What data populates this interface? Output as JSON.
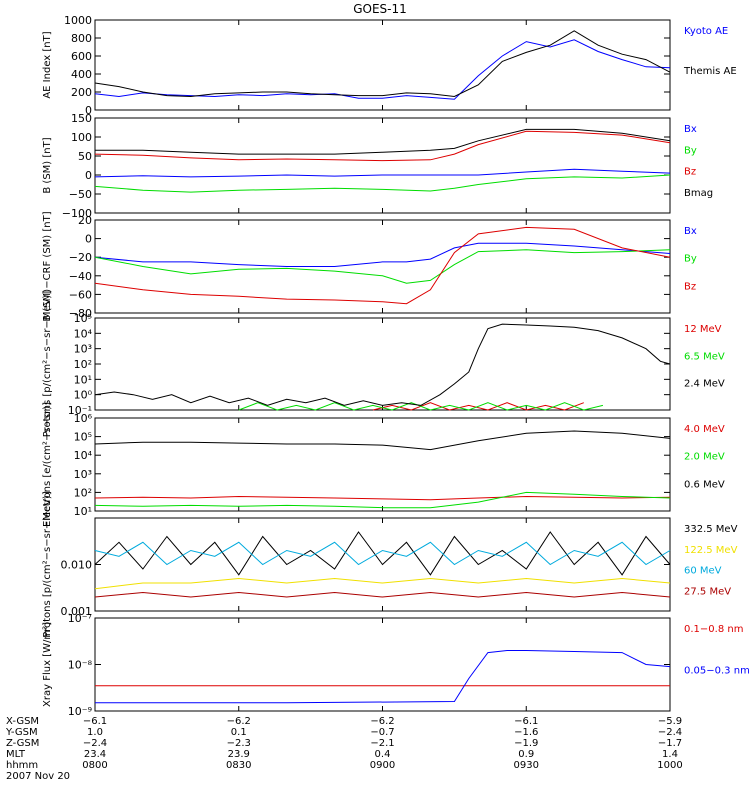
{
  "title": "GOES-11",
  "colors": {
    "black": "#000000",
    "blue": "#0000ff",
    "green": "#00dd00",
    "red": "#dd0000",
    "cyan": "#00aadd",
    "yellow": "#f0e000",
    "darkred": "#aa0000"
  },
  "chart_data": [
    {
      "type": "line",
      "ylabel": "AE Index [nT]",
      "yscale": "linear",
      "ylim": [
        0,
        1000
      ],
      "yticks": [
        {
          "v": 0,
          "t": "0"
        },
        {
          "v": 200,
          "t": "200"
        },
        {
          "v": 400,
          "t": "400"
        },
        {
          "v": 600,
          "t": "600"
        },
        {
          "v": 800,
          "t": "800"
        },
        {
          "v": 1000,
          "t": "1000"
        }
      ],
      "series": [
        {
          "name": "Kyoto AE",
          "color": "blue",
          "x": [
            0,
            5,
            10,
            15,
            20,
            25,
            30,
            35,
            40,
            45,
            50,
            55,
            60,
            65,
            70,
            75,
            80,
            85,
            90,
            95,
            100,
            105,
            110,
            115,
            120
          ],
          "y": [
            180,
            150,
            190,
            170,
            160,
            150,
            170,
            160,
            180,
            170,
            180,
            130,
            130,
            160,
            140,
            120,
            380,
            600,
            760,
            700,
            780,
            650,
            560,
            480,
            470
          ]
        },
        {
          "name": "Themis AE",
          "color": "black",
          "x": [
            0,
            5,
            10,
            15,
            20,
            25,
            30,
            35,
            40,
            45,
            50,
            55,
            60,
            65,
            70,
            75,
            80,
            85,
            90,
            95,
            100,
            105,
            110,
            115,
            120
          ],
          "y": [
            300,
            260,
            200,
            160,
            150,
            180,
            190,
            200,
            200,
            180,
            170,
            160,
            160,
            190,
            180,
            150,
            280,
            540,
            640,
            720,
            880,
            720,
            620,
            560,
            420
          ]
        }
      ]
    },
    {
      "type": "line",
      "ylabel": "B (SM) [nT]",
      "yscale": "linear",
      "ylim": [
        -100,
        150
      ],
      "yticks": [
        {
          "v": -100,
          "t": "−100"
        },
        {
          "v": -50,
          "t": "−50"
        },
        {
          "v": 0,
          "t": "0"
        },
        {
          "v": 50,
          "t": "50"
        },
        {
          "v": 100,
          "t": "100"
        },
        {
          "v": 150,
          "t": "150"
        }
      ],
      "series": [
        {
          "name": "Bx",
          "color": "blue",
          "x": [
            0,
            10,
            20,
            30,
            40,
            50,
            60,
            70,
            75,
            80,
            90,
            100,
            110,
            120
          ],
          "y": [
            -5,
            -2,
            -5,
            -3,
            0,
            -3,
            0,
            0,
            0,
            0,
            8,
            15,
            10,
            5
          ]
        },
        {
          "name": "By",
          "color": "green",
          "x": [
            0,
            10,
            20,
            30,
            40,
            50,
            60,
            70,
            75,
            80,
            90,
            100,
            110,
            120
          ],
          "y": [
            -30,
            -40,
            -45,
            -40,
            -38,
            -35,
            -38,
            -42,
            -35,
            -25,
            -10,
            -5,
            -8,
            0
          ]
        },
        {
          "name": "Bz",
          "color": "red",
          "x": [
            0,
            10,
            20,
            30,
            40,
            50,
            60,
            70,
            75,
            80,
            90,
            100,
            110,
            120
          ],
          "y": [
            55,
            52,
            45,
            40,
            42,
            40,
            38,
            40,
            55,
            80,
            115,
            112,
            105,
            85
          ]
        },
        {
          "name": "Bmag",
          "color": "black",
          "x": [
            0,
            10,
            20,
            30,
            40,
            50,
            60,
            70,
            75,
            80,
            90,
            100,
            110,
            120
          ],
          "y": [
            65,
            65,
            60,
            55,
            55,
            55,
            60,
            65,
            70,
            90,
            120,
            120,
            110,
            90
          ]
        }
      ]
    },
    {
      "type": "line",
      "ylabel": "B (SM)−CRF (SM) [nT]",
      "yscale": "linear",
      "ylim": [
        -80,
        20
      ],
      "yticks": [
        {
          "v": -80,
          "t": "−80"
        },
        {
          "v": -60,
          "t": "−60"
        },
        {
          "v": -40,
          "t": "−40"
        },
        {
          "v": -20,
          "t": "−20"
        },
        {
          "v": 0,
          "t": "0"
        },
        {
          "v": 20,
          "t": "20"
        }
      ],
      "series": [
        {
          "name": "Bx",
          "color": "blue",
          "x": [
            0,
            10,
            20,
            30,
            40,
            50,
            60,
            65,
            70,
            75,
            80,
            90,
            100,
            110,
            120
          ],
          "y": [
            -20,
            -25,
            -25,
            -28,
            -30,
            -30,
            -25,
            -25,
            -22,
            -10,
            -5,
            -5,
            -8,
            -12,
            -16
          ]
        },
        {
          "name": "By",
          "color": "green",
          "x": [
            0,
            10,
            20,
            30,
            40,
            50,
            60,
            65,
            70,
            75,
            80,
            90,
            100,
            110,
            120
          ],
          "y": [
            -20,
            -30,
            -38,
            -33,
            -32,
            -35,
            -40,
            -48,
            -45,
            -28,
            -14,
            -12,
            -15,
            -14,
            -12
          ]
        },
        {
          "name": "Bz",
          "color": "red",
          "x": [
            0,
            10,
            20,
            30,
            40,
            50,
            60,
            65,
            70,
            75,
            80,
            90,
            100,
            110,
            120
          ],
          "y": [
            -48,
            -55,
            -60,
            -62,
            -65,
            -66,
            -68,
            -70,
            -55,
            -15,
            5,
            12,
            10,
            -10,
            -20
          ]
        }
      ]
    },
    {
      "type": "line",
      "ylabel": "Protons [p/(cm²−s−sr−MeV)]",
      "yscale": "log",
      "ylim": [
        0.1,
        100000
      ],
      "yticks": [
        {
          "v": 0.1,
          "t": "10⁻¹"
        },
        {
          "v": 1,
          "t": "10⁰"
        },
        {
          "v": 10,
          "t": "10¹"
        },
        {
          "v": 100,
          "t": "10²"
        },
        {
          "v": 1000,
          "t": "10³"
        },
        {
          "v": 10000,
          "t": "10⁴"
        },
        {
          "v": 100000,
          "t": "10⁵"
        }
      ],
      "series": [
        {
          "name": "12 MeV",
          "color": "red",
          "x": [
            58,
            62,
            66,
            70,
            74,
            78,
            82,
            86,
            90,
            94,
            98,
            102
          ],
          "y": [
            0.1,
            0.2,
            0.1,
            0.3,
            0.1,
            0.2,
            0.1,
            0.3,
            0.1,
            0.2,
            0.1,
            0.3
          ]
        },
        {
          "name": "6.5 MeV",
          "color": "green",
          "x": [
            30,
            34,
            38,
            42,
            46,
            50,
            54,
            58,
            62,
            66,
            70,
            74,
            78,
            82,
            86,
            90,
            94,
            98,
            102,
            106
          ],
          "y": [
            0.1,
            0.3,
            0.1,
            0.2,
            0.1,
            0.3,
            0.1,
            0.2,
            0.1,
            0.3,
            0.1,
            0.2,
            0.1,
            0.3,
            0.1,
            0.2,
            0.1,
            0.3,
            0.1,
            0.2
          ]
        },
        {
          "name": "2.4 MeV",
          "color": "black",
          "x": [
            0,
            4,
            8,
            12,
            16,
            20,
            24,
            28,
            32,
            36,
            40,
            44,
            48,
            52,
            56,
            60,
            64,
            68,
            72,
            75,
            78,
            80,
            82,
            85,
            90,
            95,
            100,
            105,
            110,
            115,
            118,
            120
          ],
          "y": [
            1,
            1.5,
            1,
            0.5,
            1,
            0.3,
            0.8,
            0.3,
            0.6,
            0.2,
            0.5,
            0.3,
            0.6,
            0.2,
            0.4,
            0.2,
            0.3,
            0.2,
            1,
            5,
            30,
            1000,
            20000,
            40000,
            35000,
            30000,
            25000,
            15000,
            5000,
            1000,
            150,
            100
          ]
        }
      ]
    },
    {
      "type": "line",
      "ylabel": "Electrons [e/(cm²−s−sr)]",
      "yscale": "log",
      "ylim": [
        10,
        1000000
      ],
      "yticks": [
        {
          "v": 10,
          "t": "10¹"
        },
        {
          "v": 100,
          "t": "10²"
        },
        {
          "v": 1000,
          "t": "10³"
        },
        {
          "v": 10000,
          "t": "10⁴"
        },
        {
          "v": 100000,
          "t": "10⁵"
        },
        {
          "v": 1000000,
          "t": "10⁶"
        }
      ],
      "series": [
        {
          "name": "4.0 MeV",
          "color": "red",
          "x": [
            0,
            10,
            20,
            30,
            40,
            50,
            60,
            70,
            80,
            90,
            100,
            110,
            120
          ],
          "y": [
            50,
            55,
            50,
            60,
            55,
            50,
            45,
            40,
            50,
            60,
            55,
            50,
            55
          ]
        },
        {
          "name": "2.0 MeV",
          "color": "green",
          "x": [
            0,
            10,
            20,
            30,
            40,
            50,
            60,
            70,
            80,
            90,
            100,
            110,
            120
          ],
          "y": [
            20,
            18,
            20,
            18,
            20,
            18,
            15,
            15,
            30,
            100,
            80,
            60,
            50
          ]
        },
        {
          "name": "0.6 MeV",
          "color": "black",
          "x": [
            0,
            10,
            20,
            30,
            40,
            50,
            60,
            70,
            80,
            90,
            100,
            110,
            120
          ],
          "y": [
            40000,
            50000,
            50000,
            45000,
            40000,
            40000,
            35000,
            20000,
            60000,
            150000,
            200000,
            150000,
            80000
          ]
        }
      ]
    },
    {
      "type": "line",
      "ylabel": "Protons [p/(cm²−s−sr−MeV)]",
      "yscale": "log",
      "ylim": [
        0.001,
        0.1
      ],
      "yticks": [
        {
          "v": 0.001,
          "t": "0.001"
        },
        {
          "v": 0.01,
          "t": "0.010"
        }
      ],
      "series": [
        {
          "name": "332.5 MeV",
          "color": "black",
          "x": [
            0,
            5,
            10,
            15,
            20,
            25,
            30,
            35,
            40,
            45,
            50,
            55,
            60,
            65,
            70,
            75,
            80,
            85,
            90,
            95,
            100,
            105,
            110,
            115,
            120
          ],
          "y": [
            0.01,
            0.03,
            0.008,
            0.04,
            0.01,
            0.03,
            0.006,
            0.04,
            0.01,
            0.02,
            0.008,
            0.05,
            0.01,
            0.03,
            0.006,
            0.04,
            0.01,
            0.02,
            0.008,
            0.05,
            0.01,
            0.03,
            0.006,
            0.04,
            0.01
          ]
        },
        {
          "name": "122.5 MeV",
          "color": "yellow",
          "x": [
            0,
            10,
            20,
            30,
            40,
            50,
            60,
            70,
            80,
            90,
            100,
            110,
            120
          ],
          "y": [
            0.003,
            0.004,
            0.004,
            0.005,
            0.004,
            0.005,
            0.004,
            0.005,
            0.004,
            0.005,
            0.004,
            0.005,
            0.004
          ]
        },
        {
          "name": "60 MeV",
          "color": "cyan",
          "x": [
            0,
            5,
            10,
            15,
            20,
            25,
            30,
            35,
            40,
            45,
            50,
            55,
            60,
            65,
            70,
            75,
            80,
            85,
            90,
            95,
            100,
            105,
            110,
            115,
            120
          ],
          "y": [
            0.02,
            0.015,
            0.03,
            0.01,
            0.02,
            0.015,
            0.03,
            0.01,
            0.02,
            0.015,
            0.03,
            0.01,
            0.02,
            0.015,
            0.03,
            0.01,
            0.02,
            0.015,
            0.03,
            0.01,
            0.02,
            0.015,
            0.03,
            0.01,
            0.02
          ]
        },
        {
          "name": "27.5 MeV",
          "color": "darkred",
          "x": [
            0,
            10,
            20,
            30,
            40,
            50,
            60,
            70,
            80,
            90,
            100,
            110,
            120
          ],
          "y": [
            0.002,
            0.0025,
            0.002,
            0.0025,
            0.002,
            0.0025,
            0.002,
            0.0025,
            0.002,
            0.0025,
            0.002,
            0.0025,
            0.002
          ]
        }
      ]
    },
    {
      "type": "line",
      "ylabel": "Xray Flux [W/m²]",
      "yscale": "log",
      "ylim": [
        1e-09,
        1e-07
      ],
      "yticks": [
        {
          "v": 1e-09,
          "t": "10⁻⁹"
        },
        {
          "v": 1e-08,
          "t": "10⁻⁸"
        },
        {
          "v": 1e-07,
          "t": "10⁻⁷"
        }
      ],
      "series": [
        {
          "name": "0.1−0.8 nm",
          "color": "red",
          "x": [
            0,
            120
          ],
          "y": [
            3.5e-09,
            3.5e-09
          ]
        },
        {
          "name": "0.05−0.3 nm",
          "color": "blue",
          "x": [
            0,
            40,
            75,
            78,
            82,
            86,
            90,
            100,
            110,
            115,
            120
          ],
          "y": [
            1.5e-09,
            1.5e-09,
            1.6e-09,
            5e-09,
            1.8e-08,
            2e-08,
            2e-08,
            1.9e-08,
            1.8e-08,
            1e-08,
            9e-09
          ]
        }
      ]
    }
  ],
  "xaxis": {
    "ticks": [
      0,
      30,
      60,
      90,
      120
    ],
    "rows": [
      {
        "label": "X-GSM",
        "values": [
          "−6.1",
          "−6.2",
          "−6.2",
          "−6.1",
          "−5.9"
        ]
      },
      {
        "label": "Y-GSM",
        "values": [
          "1.0",
          "0.1",
          "−0.7",
          "−1.6",
          "−2.4"
        ]
      },
      {
        "label": "Z-GSM",
        "values": [
          "−2.4",
          "−2.3",
          "−2.1",
          "−1.9",
          "−1.7"
        ]
      },
      {
        "label": "MLT",
        "values": [
          "23.4",
          "23.9",
          "0.4",
          "0.9",
          "1.4"
        ]
      },
      {
        "label": "hhmm",
        "values": [
          "0800",
          "0830",
          "0900",
          "0930",
          "1000"
        ]
      }
    ],
    "date": "2007 Nov 20"
  }
}
